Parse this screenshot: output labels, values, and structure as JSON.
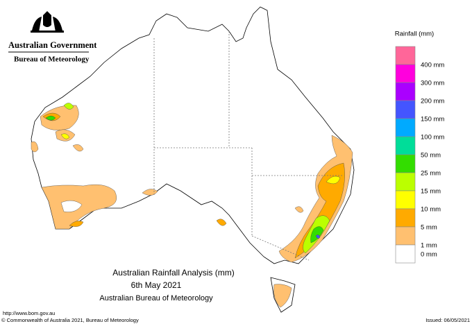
{
  "header": {
    "government": "Australian Government",
    "agency": "Bureau of Meteorology"
  },
  "map": {
    "title": "Australian Rainfall Analysis (mm)",
    "date": "6th May 2021",
    "source": "Australian Bureau of Meteorology"
  },
  "legend": {
    "title": "Rainfall (mm)",
    "items": [
      {
        "label": "400 mm",
        "color": "#ff6699"
      },
      {
        "label": "300 mm",
        "color": "#ff00dd"
      },
      {
        "label": "200 mm",
        "color": "#aa00ff"
      },
      {
        "label": "150 mm",
        "color": "#4455ff"
      },
      {
        "label": "100 mm",
        "color": "#00aaff"
      },
      {
        "label": "50 mm",
        "color": "#00dd99"
      },
      {
        "label": "25 mm",
        "color": "#33dd00"
      },
      {
        "label": "15 mm",
        "color": "#bbff00"
      },
      {
        "label": "10 mm",
        "color": "#ffff00"
      },
      {
        "label": "5 mm",
        "color": "#ffaa00"
      },
      {
        "label": "1 mm",
        "color": "#ffc070"
      },
      {
        "label": "0 mm",
        "color": "#ffffff"
      }
    ]
  },
  "footer": {
    "url": "http://www.bom.gov.au",
    "copyright": "© Commonwealth of Australia 2021, Bureau of Meteorology",
    "issued": "Issued: 06/05/2021"
  }
}
